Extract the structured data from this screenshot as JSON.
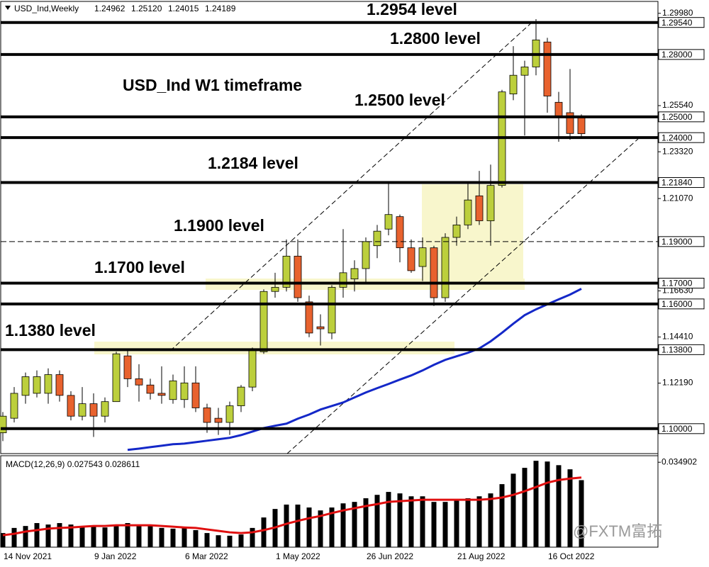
{
  "chart_data": [
    {
      "type": "candlestick",
      "title": "USD_Ind,Weekly",
      "title_values": [
        "1.24962",
        "1.25120",
        "1.24015",
        "1.24189"
      ],
      "annotation": "USD_Ind W1 timeframe",
      "watermark": "@FXTM富拓",
      "categories": [
        "14 Nov 2021",
        null,
        null,
        null,
        null,
        null,
        null,
        null,
        "9 Jan 2022",
        null,
        null,
        null,
        null,
        null,
        null,
        null,
        "6 Mar 2022",
        null,
        null,
        null,
        null,
        null,
        null,
        null,
        "1 May 2022",
        null,
        null,
        null,
        null,
        null,
        null,
        null,
        "26 Jun 2022",
        null,
        null,
        null,
        null,
        null,
        null,
        null,
        "21 Aug 2022",
        null,
        null,
        null,
        null,
        null,
        null,
        null,
        "16 Oct 2022",
        null,
        null,
        null
      ],
      "open": [
        1.098,
        1.105,
        1.116,
        1.117,
        1.117,
        1.126,
        1.116,
        1.106,
        1.112,
        1.106,
        1.113,
        1.135,
        1.124,
        1.121,
        1.117,
        1.114,
        1.114,
        1.122,
        1.11,
        1.105,
        1.103,
        1.111,
        1.12,
        1.137,
        1.166,
        1.168,
        1.183,
        1.161,
        1.149,
        1.146,
        1.168,
        1.172,
        1.177,
        1.188,
        1.196,
        1.202,
        1.187,
        1.178,
        1.187,
        1.163,
        1.192,
        1.198,
        1.212,
        1.2,
        1.217,
        1.261,
        1.27,
        1.274,
        1.286,
        1.257,
        1.252,
        1.24962
      ],
      "high": [
        1.108,
        1.12,
        1.127,
        1.128,
        1.129,
        1.128,
        1.118,
        1.12,
        1.117,
        1.115,
        1.137,
        1.138,
        1.131,
        1.124,
        1.13,
        1.126,
        1.13,
        1.13,
        1.112,
        1.11,
        1.113,
        1.121,
        1.139,
        1.167,
        1.175,
        1.191,
        1.191,
        1.164,
        1.155,
        1.169,
        1.196,
        1.181,
        1.192,
        1.198,
        1.219,
        1.203,
        1.191,
        1.192,
        1.188,
        1.194,
        1.202,
        1.219,
        1.224,
        1.227,
        1.263,
        1.284,
        1.277,
        1.297,
        1.288,
        1.262,
        1.273,
        1.2512
      ],
      "low": [
        1.094,
        1.103,
        1.112,
        1.115,
        1.112,
        1.113,
        1.104,
        1.104,
        1.096,
        1.103,
        1.113,
        1.12,
        1.113,
        1.114,
        1.112,
        1.112,
        1.11,
        1.108,
        1.098,
        1.097,
        1.097,
        1.108,
        1.118,
        1.136,
        1.163,
        1.166,
        1.161,
        1.144,
        1.14,
        1.143,
        1.163,
        1.166,
        1.17,
        1.182,
        1.193,
        1.18,
        1.175,
        1.171,
        1.159,
        1.161,
        1.188,
        1.196,
        1.198,
        1.188,
        1.216,
        1.258,
        1.241,
        1.27,
        1.252,
        1.238,
        1.239,
        1.24015
      ],
      "close": [
        1.106,
        1.117,
        1.125,
        1.125,
        1.126,
        1.116,
        1.106,
        1.112,
        1.106,
        1.113,
        1.136,
        1.124,
        1.121,
        1.117,
        1.116,
        1.123,
        1.122,
        1.11,
        1.103,
        1.103,
        1.111,
        1.12,
        1.138,
        1.166,
        1.168,
        1.183,
        1.163,
        1.146,
        1.148,
        1.168,
        1.175,
        1.177,
        1.19,
        1.195,
        1.203,
        1.187,
        1.176,
        1.187,
        1.163,
        1.192,
        1.198,
        1.21,
        1.2,
        1.217,
        1.262,
        1.27,
        1.274,
        1.287,
        1.26,
        1.25,
        1.242,
        1.24189
      ],
      "up_color": "#bccf3c",
      "down_color": "#e8622e",
      "moving_average": {
        "color": "#1428c8",
        "values": [
          null,
          null,
          null,
          null,
          null,
          null,
          null,
          null,
          null,
          null,
          null,
          1.0898,
          1.0904,
          1.0911,
          1.0918,
          1.0925,
          1.0928,
          1.0935,
          1.0942,
          1.0949,
          1.0956,
          1.0969,
          1.0986,
          1.1003,
          1.1014,
          1.1024,
          1.1048,
          1.1068,
          1.1092,
          1.1109,
          1.1126,
          1.115,
          1.1174,
          1.1195,
          1.1215,
          1.1236,
          1.1256,
          1.128,
          1.1307,
          1.1331,
          1.1348,
          1.1365,
          1.1386,
          1.142,
          1.1461,
          1.1505,
          1.1546,
          1.1574,
          1.1598,
          1.1622,
          1.1645,
          1.1673
        ]
      },
      "levels": [
        {
          "value": 1.2954,
          "label": "1.29540",
          "annotation": "1.2954 level"
        },
        {
          "value": 1.28,
          "label": "1.28000",
          "annotation": "1.2800 level"
        },
        {
          "value": 1.25,
          "label": "1.25000",
          "annotation": "1.2500 level"
        },
        {
          "value": 1.24,
          "label": "1.24000"
        },
        {
          "value": 1.2184,
          "label": "1.21840",
          "annotation": "1.2184 level"
        },
        {
          "value": 1.19,
          "label": "1.19000",
          "annotation": "1.1900 level",
          "dashed": true
        },
        {
          "value": 1.17,
          "label": "1.17000",
          "annotation": "1.1700 level"
        },
        {
          "value": 1.16,
          "label": "1.16000"
        },
        {
          "value": 1.138,
          "label": "1.13800",
          "annotation": "1.1380 level"
        },
        {
          "value": 1.1,
          "label": "1.10000"
        }
      ],
      "ylim": [
        1.088,
        1.3045
      ],
      "yticks": [
        {
          "value": 1.2998,
          "label": "1.29980"
        },
        {
          "value": 1.2554,
          "label": "1.25540"
        },
        {
          "value": 1.2332,
          "label": "1.23320"
        },
        {
          "value": 1.2107,
          "label": "1.21070"
        },
        {
          "value": 1.1663,
          "label": "1.16630"
        },
        {
          "value": 1.1441,
          "label": "1.14410"
        },
        {
          "value": 1.1219,
          "label": "1.12190"
        }
      ]
    },
    {
      "type": "macd",
      "title": "MACD(12,26,9) 0.027543 0.028611",
      "color": "#000000",
      "values": [
        0.0058,
        0.0079,
        0.0087,
        0.0099,
        0.0093,
        0.0099,
        0.0093,
        0.0087,
        0.0087,
        0.0081,
        0.0093,
        0.0099,
        0.0093,
        0.0087,
        0.0079,
        0.0076,
        0.0079,
        0.007,
        0.0058,
        0.0049,
        0.0047,
        0.0052,
        0.0079,
        0.0122,
        0.0157,
        0.0175,
        0.0175,
        0.0163,
        0.0151,
        0.0163,
        0.018,
        0.0186,
        0.0201,
        0.0215,
        0.0227,
        0.0221,
        0.0209,
        0.0209,
        0.0186,
        0.0186,
        0.0192,
        0.0201,
        0.0209,
        0.0221,
        0.0259,
        0.0302,
        0.0326,
        0.0355,
        0.0352,
        0.0337,
        0.032,
        0.027543
      ],
      "signal": {
        "color": "#e01010",
        "values": [
          0.0049,
          0.0055,
          0.0064,
          0.007,
          0.0076,
          0.0079,
          0.0081,
          0.0084,
          0.0087,
          0.0087,
          0.009,
          0.009,
          0.009,
          0.009,
          0.0087,
          0.0084,
          0.0081,
          0.0079,
          0.0073,
          0.0067,
          0.0061,
          0.0058,
          0.0061,
          0.007,
          0.0081,
          0.0096,
          0.0108,
          0.0119,
          0.0128,
          0.014,
          0.0151,
          0.016,
          0.0169,
          0.0177,
          0.0186,
          0.0189,
          0.0192,
          0.0195,
          0.0195,
          0.0195,
          0.0195,
          0.0195,
          0.0195,
          0.0198,
          0.0204,
          0.0215,
          0.023,
          0.0247,
          0.0265,
          0.0276,
          0.0282,
          0.028611
        ]
      },
      "ylim": [
        0,
        0.037
      ],
      "yticks": [
        0.034902
      ]
    }
  ]
}
